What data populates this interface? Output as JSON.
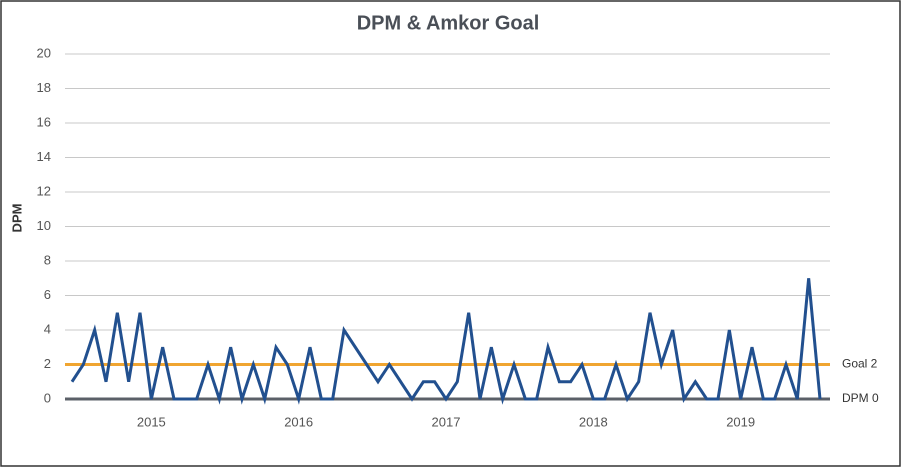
{
  "chart_data": {
    "type": "line",
    "title": "DPM & Amkor Goal",
    "y_label": "DPM",
    "categories": [
      null,
      null,
      null,
      null,
      null,
      null,
      null,
      "2015",
      null,
      null,
      null,
      null,
      null,
      null,
      null,
      null,
      null,
      null,
      null,
      null,
      "2016",
      null,
      null,
      null,
      null,
      null,
      null,
      null,
      null,
      null,
      null,
      null,
      null,
      "2017",
      null,
      null,
      null,
      null,
      null,
      null,
      null,
      null,
      null,
      null,
      null,
      null,
      "2018",
      null,
      null,
      null,
      null,
      null,
      null,
      null,
      null,
      null,
      null,
      null,
      null,
      "2019",
      null,
      null,
      null,
      null,
      null,
      null,
      null
    ],
    "series": [
      {
        "name": "DPM",
        "color": "#22508f",
        "values": [
          1,
          2,
          4,
          1,
          5,
          1,
          5,
          0,
          3,
          0,
          0,
          0,
          2,
          0,
          3,
          0,
          2,
          0,
          3,
          2,
          0,
          3,
          0,
          0,
          4,
          3,
          2,
          1,
          2,
          1,
          0,
          1,
          1,
          0,
          1,
          5,
          0,
          3,
          0,
          2,
          0,
          0,
          3,
          1,
          1,
          2,
          0,
          0,
          2,
          0,
          1,
          5,
          2,
          4,
          0,
          1,
          0,
          0,
          4,
          0,
          3,
          0,
          0,
          2,
          0,
          7,
          0
        ]
      }
    ],
    "reference_lines": [
      {
        "label": "Goal 2",
        "value": 2,
        "color": "#f0a531"
      },
      {
        "label": "DPM 0",
        "value": 0,
        "color": "#5b6068"
      }
    ],
    "ylim": [
      0,
      20
    ],
    "yticks": [
      0,
      2,
      4,
      6,
      8,
      10,
      12,
      14,
      16,
      18,
      20
    ],
    "grid": true
  }
}
